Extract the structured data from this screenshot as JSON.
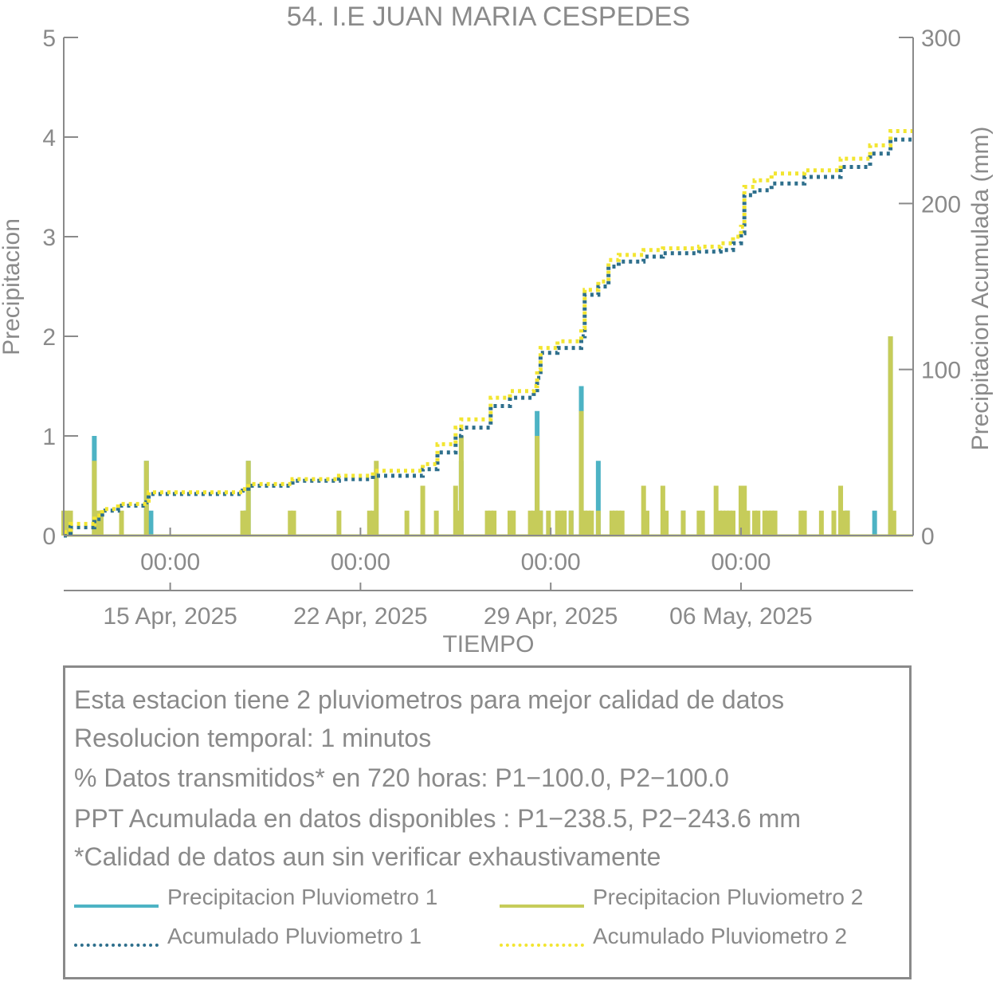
{
  "chart_data": {
    "type": "bar",
    "title": "54. I.E JUAN MARIA CESPEDES",
    "xlabel": "TIEMPO",
    "ylabel": "Precipitacion",
    "y2label": "Precipitacion Acumulada (mm)",
    "ylim": [
      0,
      5
    ],
    "y2lim": [
      0,
      300
    ],
    "yticks": [
      "0",
      "1",
      "2",
      "3",
      "4",
      "5"
    ],
    "y2ticks": [
      "0",
      "100",
      "200",
      "300"
    ],
    "xlim": [
      "2025-04-09 02:00",
      "2025-05-10 08:00"
    ],
    "xticks_time": [
      "00:00",
      "00:00",
      "00:00",
      "00:00"
    ],
    "xticks_date": [
      "15 Apr, 2025",
      "22 Apr, 2025",
      "29 Apr, 2025",
      "06 May, 2025"
    ],
    "xticks_at": [
      "2025-04-13 00:00",
      "2025-04-20 00:00",
      "2025-04-27 00:00",
      "2025-05-04 00:00"
    ],
    "grid": false,
    "series": [
      {
        "name": "Precipitacion Pluviometro 1",
        "kind": "bar",
        "axis": "left",
        "color": "#4db3c4",
        "points": [
          [
            "2025-04-10 05:00",
            1.0
          ],
          [
            "2025-04-10 08:00",
            0.2
          ],
          [
            "2025-04-12 03:00",
            0.75
          ],
          [
            "2025-04-12 07:00",
            0.25
          ],
          [
            "2025-04-15 19:00",
            0.25
          ],
          [
            "2025-04-15 21:00",
            0.75
          ],
          [
            "2025-04-23 17:00",
            0.75
          ],
          [
            "2025-04-26 12:00",
            1.25
          ],
          [
            "2025-04-26 15:00",
            0.25
          ],
          [
            "2025-04-27 18:00",
            0.25
          ],
          [
            "2025-04-28 03:00",
            1.5
          ],
          [
            "2025-04-28 18:00",
            0.75
          ],
          [
            "2025-05-01 21:00",
            0.25
          ],
          [
            "2025-05-07 22:00",
            0.25
          ],
          [
            "2025-05-08 22:00",
            0.25
          ],
          [
            "2025-05-09 12:00",
            2.0
          ]
        ]
      },
      {
        "name": "Precipitacion Pluviometro 2",
        "kind": "bar",
        "axis": "left",
        "color": "#c6cc5a",
        "points": [
          [
            "2025-04-09 02:00",
            0.25
          ],
          [
            "2025-04-09 05:00",
            0.25
          ],
          [
            "2025-04-09 08:00",
            0.25
          ],
          [
            "2025-04-10 05:00",
            0.75
          ],
          [
            "2025-04-10 08:00",
            0.25
          ],
          [
            "2025-04-10 11:00",
            0.25
          ],
          [
            "2025-04-11 05:00",
            0.25
          ],
          [
            "2025-04-12 03:00",
            0.75
          ],
          [
            "2025-04-15 16:00",
            0.25
          ],
          [
            "2025-04-15 19:00",
            0.25
          ],
          [
            "2025-04-15 21:00",
            0.75
          ],
          [
            "2025-04-17 10:00",
            0.25
          ],
          [
            "2025-04-17 13:00",
            0.25
          ],
          [
            "2025-04-19 05:00",
            0.25
          ],
          [
            "2025-04-20 08:00",
            0.25
          ],
          [
            "2025-04-20 11:00",
            0.25
          ],
          [
            "2025-04-20 14:00",
            0.75
          ],
          [
            "2025-04-21 17:00",
            0.25
          ],
          [
            "2025-04-22 07:00",
            0.5
          ],
          [
            "2025-04-22 19:00",
            0.25
          ],
          [
            "2025-04-23 12:00",
            0.5
          ],
          [
            "2025-04-23 15:00",
            0.25
          ],
          [
            "2025-04-23 17:00",
            1.0
          ],
          [
            "2025-04-24 16:00",
            0.25
          ],
          [
            "2025-04-24 19:00",
            0.25
          ],
          [
            "2025-04-24 22:00",
            0.25
          ],
          [
            "2025-04-25 12:00",
            0.25
          ],
          [
            "2025-04-25 15:00",
            0.25
          ],
          [
            "2025-04-26 06:00",
            0.25
          ],
          [
            "2025-04-26 09:00",
            0.25
          ],
          [
            "2025-04-26 12:00",
            1.0
          ],
          [
            "2025-04-26 15:00",
            0.25
          ],
          [
            "2025-04-26 22:00",
            0.25
          ],
          [
            "2025-04-27 06:00",
            0.25
          ],
          [
            "2025-04-27 09:00",
            0.25
          ],
          [
            "2025-04-27 12:00",
            0.25
          ],
          [
            "2025-04-27 18:00",
            0.25
          ],
          [
            "2025-04-28 03:00",
            1.25
          ],
          [
            "2025-04-28 06:00",
            0.25
          ],
          [
            "2025-04-28 09:00",
            0.25
          ],
          [
            "2025-04-28 12:00",
            0.25
          ],
          [
            "2025-04-28 18:00",
            0.25
          ],
          [
            "2025-04-29 06:00",
            0.25
          ],
          [
            "2025-04-29 09:00",
            0.25
          ],
          [
            "2025-04-29 12:00",
            0.25
          ],
          [
            "2025-04-29 15:00",
            0.25
          ],
          [
            "2025-04-30 10:00",
            0.5
          ],
          [
            "2025-04-30 13:00",
            0.25
          ],
          [
            "2025-05-01 03:00",
            0.5
          ],
          [
            "2025-05-01 06:00",
            0.25
          ],
          [
            "2025-05-01 21:00",
            0.25
          ],
          [
            "2025-05-02 11:00",
            0.25
          ],
          [
            "2025-05-02 14:00",
            0.25
          ],
          [
            "2025-05-03 02:00",
            0.5
          ],
          [
            "2025-05-03 05:00",
            0.25
          ],
          [
            "2025-05-03 08:00",
            0.25
          ],
          [
            "2025-05-03 11:00",
            0.25
          ],
          [
            "2025-05-03 14:00",
            0.25
          ],
          [
            "2025-05-03 17:00",
            0.25
          ],
          [
            "2025-05-04 00:00",
            0.5
          ],
          [
            "2025-05-04 03:00",
            0.5
          ],
          [
            "2025-05-04 06:00",
            0.25
          ],
          [
            "2025-05-04 12:00",
            0.25
          ],
          [
            "2025-05-04 15:00",
            0.25
          ],
          [
            "2025-05-04 21:00",
            0.25
          ],
          [
            "2025-05-05 00:00",
            0.25
          ],
          [
            "2025-05-05 03:00",
            0.25
          ],
          [
            "2025-05-05 06:00",
            0.25
          ],
          [
            "2025-05-06 05:00",
            0.25
          ],
          [
            "2025-05-06 08:00",
            0.25
          ],
          [
            "2025-05-06 23:00",
            0.25
          ],
          [
            "2025-05-07 10:00",
            0.25
          ],
          [
            "2025-05-07 16:00",
            0.5
          ],
          [
            "2025-05-07 19:00",
            0.25
          ],
          [
            "2025-05-07 22:00",
            0.25
          ],
          [
            "2025-05-09 12:00",
            2.0
          ],
          [
            "2025-05-09 15:00",
            0.25
          ]
        ]
      },
      {
        "name": "Acumulado Pluviometro 1",
        "kind": "step-dotted",
        "axis": "right",
        "color": "#2e6f8c",
        "points": [
          [
            "2025-04-09 02:00",
            0
          ],
          [
            "2025-04-09 08:00",
            5
          ],
          [
            "2025-04-10 05:00",
            10
          ],
          [
            "2025-04-10 12:00",
            15
          ],
          [
            "2025-04-11 02:00",
            18
          ],
          [
            "2025-04-12 03:00",
            20
          ],
          [
            "2025-04-12 05:00",
            25
          ],
          [
            "2025-04-15 16:00",
            27
          ],
          [
            "2025-04-15 21:00",
            30
          ],
          [
            "2025-04-17 12:00",
            33
          ],
          [
            "2025-04-19 05:00",
            34
          ],
          [
            "2025-04-20 11:00",
            36
          ],
          [
            "2025-04-22 07:00",
            40
          ],
          [
            "2025-04-22 20:00",
            50
          ],
          [
            "2025-04-23 12:00",
            60
          ],
          [
            "2025-04-23 17:00",
            65
          ],
          [
            "2025-04-24 19:00",
            78
          ],
          [
            "2025-04-25 12:00",
            83
          ],
          [
            "2025-04-26 09:00",
            86
          ],
          [
            "2025-04-26 12:00",
            95
          ],
          [
            "2025-04-26 15:00",
            110
          ],
          [
            "2025-04-27 06:00",
            113
          ],
          [
            "2025-04-28 03:00",
            120
          ],
          [
            "2025-04-28 06:00",
            145
          ],
          [
            "2025-04-28 18:00",
            150
          ],
          [
            "2025-04-29 03:00",
            162
          ],
          [
            "2025-04-29 12:00",
            165
          ],
          [
            "2025-04-30 10:00",
            168
          ],
          [
            "2025-05-01 03:00",
            170
          ],
          [
            "2025-05-02 11:00",
            171
          ],
          [
            "2025-05-03 06:00",
            172
          ],
          [
            "2025-05-03 17:00",
            176
          ],
          [
            "2025-05-04 00:00",
            182
          ],
          [
            "2025-05-04 03:00",
            205
          ],
          [
            "2025-05-04 12:00",
            208
          ],
          [
            "2025-05-05 03:00",
            212
          ],
          [
            "2025-05-06 08:00",
            216
          ],
          [
            "2025-05-07 16:00",
            222
          ],
          [
            "2025-05-08 18:00",
            230
          ],
          [
            "2025-05-09 12:00",
            238.5
          ],
          [
            "2025-05-10 08:00",
            238.5
          ]
        ]
      },
      {
        "name": "Acumulado Pluviometro 2",
        "kind": "step-dotted",
        "axis": "right",
        "color": "#f2e531",
        "points": [
          [
            "2025-04-09 02:00",
            2
          ],
          [
            "2025-04-09 08:00",
            7
          ],
          [
            "2025-04-10 05:00",
            12
          ],
          [
            "2025-04-10 12:00",
            16
          ],
          [
            "2025-04-11 02:00",
            19
          ],
          [
            "2025-04-12 03:00",
            21
          ],
          [
            "2025-04-12 05:00",
            26
          ],
          [
            "2025-04-15 16:00",
            28
          ],
          [
            "2025-04-15 21:00",
            31
          ],
          [
            "2025-04-17 12:00",
            34
          ],
          [
            "2025-04-19 05:00",
            36
          ],
          [
            "2025-04-20 11:00",
            39
          ],
          [
            "2025-04-22 07:00",
            43
          ],
          [
            "2025-04-22 20:00",
            55
          ],
          [
            "2025-04-23 12:00",
            65
          ],
          [
            "2025-04-23 17:00",
            70
          ],
          [
            "2025-04-24 19:00",
            83
          ],
          [
            "2025-04-25 12:00",
            87
          ],
          [
            "2025-04-26 09:00",
            90
          ],
          [
            "2025-04-26 12:00",
            100
          ],
          [
            "2025-04-26 15:00",
            113
          ],
          [
            "2025-04-27 06:00",
            117
          ],
          [
            "2025-04-28 03:00",
            125
          ],
          [
            "2025-04-28 06:00",
            148
          ],
          [
            "2025-04-28 18:00",
            153
          ],
          [
            "2025-04-29 03:00",
            166
          ],
          [
            "2025-04-29 12:00",
            169
          ],
          [
            "2025-04-30 10:00",
            172
          ],
          [
            "2025-05-01 03:00",
            173
          ],
          [
            "2025-05-02 11:00",
            174
          ],
          [
            "2025-05-03 06:00",
            176
          ],
          [
            "2025-05-03 17:00",
            180
          ],
          [
            "2025-05-04 00:00",
            186
          ],
          [
            "2025-05-04 03:00",
            210
          ],
          [
            "2025-05-04 12:00",
            214
          ],
          [
            "2025-05-05 03:00",
            218
          ],
          [
            "2025-05-06 08:00",
            220
          ],
          [
            "2025-05-07 16:00",
            227
          ],
          [
            "2025-05-08 18:00",
            235
          ],
          [
            "2025-05-09 12:00",
            243.6
          ],
          [
            "2025-05-10 08:00",
            243.6
          ]
        ]
      }
    ]
  },
  "info": {
    "lines": [
      "Esta estacion tiene 2 pluviometros para mejor calidad de datos",
      "Resolucion temporal: 1 minutos",
      "% Datos transmitidos* en 720 horas: P1−100.0, P2−100.0",
      "PPT Acumulada en datos disponibles : P1−238.5, P2−243.6 mm",
      "*Calidad de datos aun sin verificar exhaustivamente"
    ]
  },
  "legend": [
    {
      "label": "Precipitacion Pluviometro 1",
      "color": "#4db3c4",
      "style": "solid"
    },
    {
      "label": "Precipitacion Pluviometro 2",
      "color": "#c6cc5a",
      "style": "solid"
    },
    {
      "label": "Acumulado Pluviometro 1",
      "color": "#2e6f8c",
      "style": "dotted"
    },
    {
      "label": "Acumulado Pluviometro 2",
      "color": "#f2e531",
      "style": "dotted"
    }
  ]
}
